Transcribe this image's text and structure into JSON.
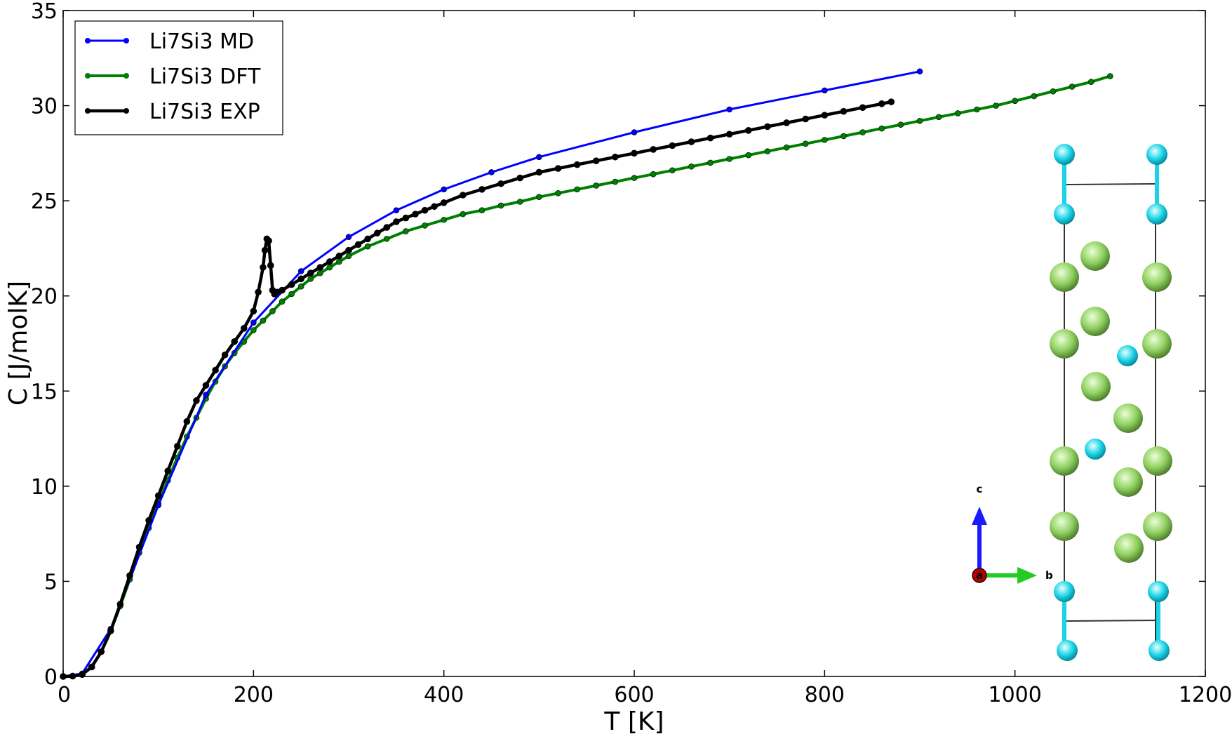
{
  "chart_data": {
    "type": "line",
    "xlabel": "T [K]",
    "ylabel": "C [J/molK]",
    "xlim": [
      0,
      1200
    ],
    "ylim": [
      0,
      35
    ],
    "xticks": [
      "0",
      "200",
      "400",
      "600",
      "800",
      "1000",
      "1200"
    ],
    "yticks": [
      "0",
      "5",
      "10",
      "15",
      "20",
      "25",
      "30",
      "35"
    ],
    "grid": false,
    "legend_position": "top-left",
    "series": [
      {
        "name": "Li7Si3 MD",
        "color": "#0000ff",
        "x": [
          0,
          20,
          50,
          100,
          150,
          200,
          250,
          300,
          350,
          400,
          450,
          500,
          600,
          700,
          800,
          900
        ],
        "y": [
          0,
          0.15,
          2.5,
          9.0,
          14.8,
          18.6,
          21.3,
          23.1,
          24.5,
          25.6,
          26.5,
          27.3,
          28.6,
          29.8,
          30.8,
          31.8
        ]
      },
      {
        "name": "Li7Si3 DFT",
        "color": "#008000",
        "x": [
          0,
          10,
          20,
          30,
          40,
          50,
          60,
          70,
          80,
          90,
          100,
          110,
          120,
          130,
          140,
          150,
          160,
          170,
          180,
          190,
          200,
          210,
          220,
          230,
          240,
          250,
          260,
          270,
          280,
          290,
          300,
          320,
          340,
          360,
          380,
          400,
          420,
          440,
          460,
          480,
          500,
          520,
          540,
          560,
          580,
          600,
          620,
          640,
          660,
          680,
          700,
          720,
          740,
          760,
          780,
          800,
          820,
          840,
          860,
          880,
          900,
          920,
          940,
          960,
          980,
          1000,
          1020,
          1040,
          1060,
          1080,
          1100
        ],
        "y": [
          0,
          0.02,
          0.1,
          0.5,
          1.3,
          2.4,
          3.7,
          5.1,
          6.5,
          7.8,
          9.1,
          10.3,
          11.5,
          12.6,
          13.6,
          14.6,
          15.5,
          16.3,
          17.0,
          17.6,
          18.2,
          18.7,
          19.2,
          19.7,
          20.1,
          20.5,
          20.9,
          21.2,
          21.5,
          21.8,
          22.1,
          22.6,
          23.0,
          23.4,
          23.7,
          24.0,
          24.3,
          24.5,
          24.75,
          24.95,
          25.2,
          25.4,
          25.6,
          25.8,
          26.0,
          26.2,
          26.4,
          26.6,
          26.8,
          27.0,
          27.2,
          27.4,
          27.6,
          27.8,
          28.0,
          28.2,
          28.4,
          28.6,
          28.8,
          29.0,
          29.2,
          29.4,
          29.6,
          29.8,
          30.0,
          30.25,
          30.5,
          30.75,
          31.0,
          31.25,
          31.55
        ]
      },
      {
        "name": "Li7Si3 EXP",
        "color": "#000000",
        "x": [
          0,
          10,
          20,
          30,
          40,
          50,
          60,
          70,
          80,
          90,
          100,
          110,
          120,
          130,
          140,
          150,
          160,
          170,
          180,
          190,
          200,
          205,
          210,
          212,
          214,
          216,
          218,
          220,
          222,
          225,
          230,
          240,
          250,
          260,
          270,
          280,
          290,
          300,
          310,
          320,
          330,
          340,
          350,
          360,
          370,
          380,
          390,
          400,
          420,
          440,
          460,
          480,
          500,
          520,
          540,
          560,
          580,
          600,
          620,
          640,
          660,
          680,
          700,
          720,
          740,
          760,
          780,
          800,
          820,
          840,
          860,
          870
        ],
        "y": [
          0,
          0.02,
          0.1,
          0.5,
          1.3,
          2.4,
          3.8,
          5.3,
          6.8,
          8.2,
          9.5,
          10.8,
          12.1,
          13.4,
          14.5,
          15.3,
          16.1,
          16.9,
          17.6,
          18.3,
          19.2,
          20.2,
          21.5,
          22.4,
          23.0,
          22.9,
          21.6,
          20.3,
          20.1,
          20.2,
          20.3,
          20.6,
          20.9,
          21.2,
          21.5,
          21.8,
          22.1,
          22.4,
          22.7,
          23.0,
          23.3,
          23.6,
          23.9,
          24.1,
          24.3,
          24.5,
          24.7,
          24.9,
          25.3,
          25.6,
          25.9,
          26.2,
          26.5,
          26.7,
          26.9,
          27.1,
          27.3,
          27.5,
          27.7,
          27.9,
          28.1,
          28.3,
          28.5,
          28.7,
          28.9,
          29.1,
          29.3,
          29.5,
          29.7,
          29.9,
          30.1,
          30.2
        ]
      }
    ]
  },
  "inset": {
    "axes": {
      "c": "c",
      "b": "b",
      "a": "a"
    },
    "colors": {
      "si": "#19d3e6",
      "li": "#8fcf5f",
      "a_axis": "#b30000",
      "b_axis": "#22cc22",
      "c_axis": "#1a1aff"
    }
  }
}
